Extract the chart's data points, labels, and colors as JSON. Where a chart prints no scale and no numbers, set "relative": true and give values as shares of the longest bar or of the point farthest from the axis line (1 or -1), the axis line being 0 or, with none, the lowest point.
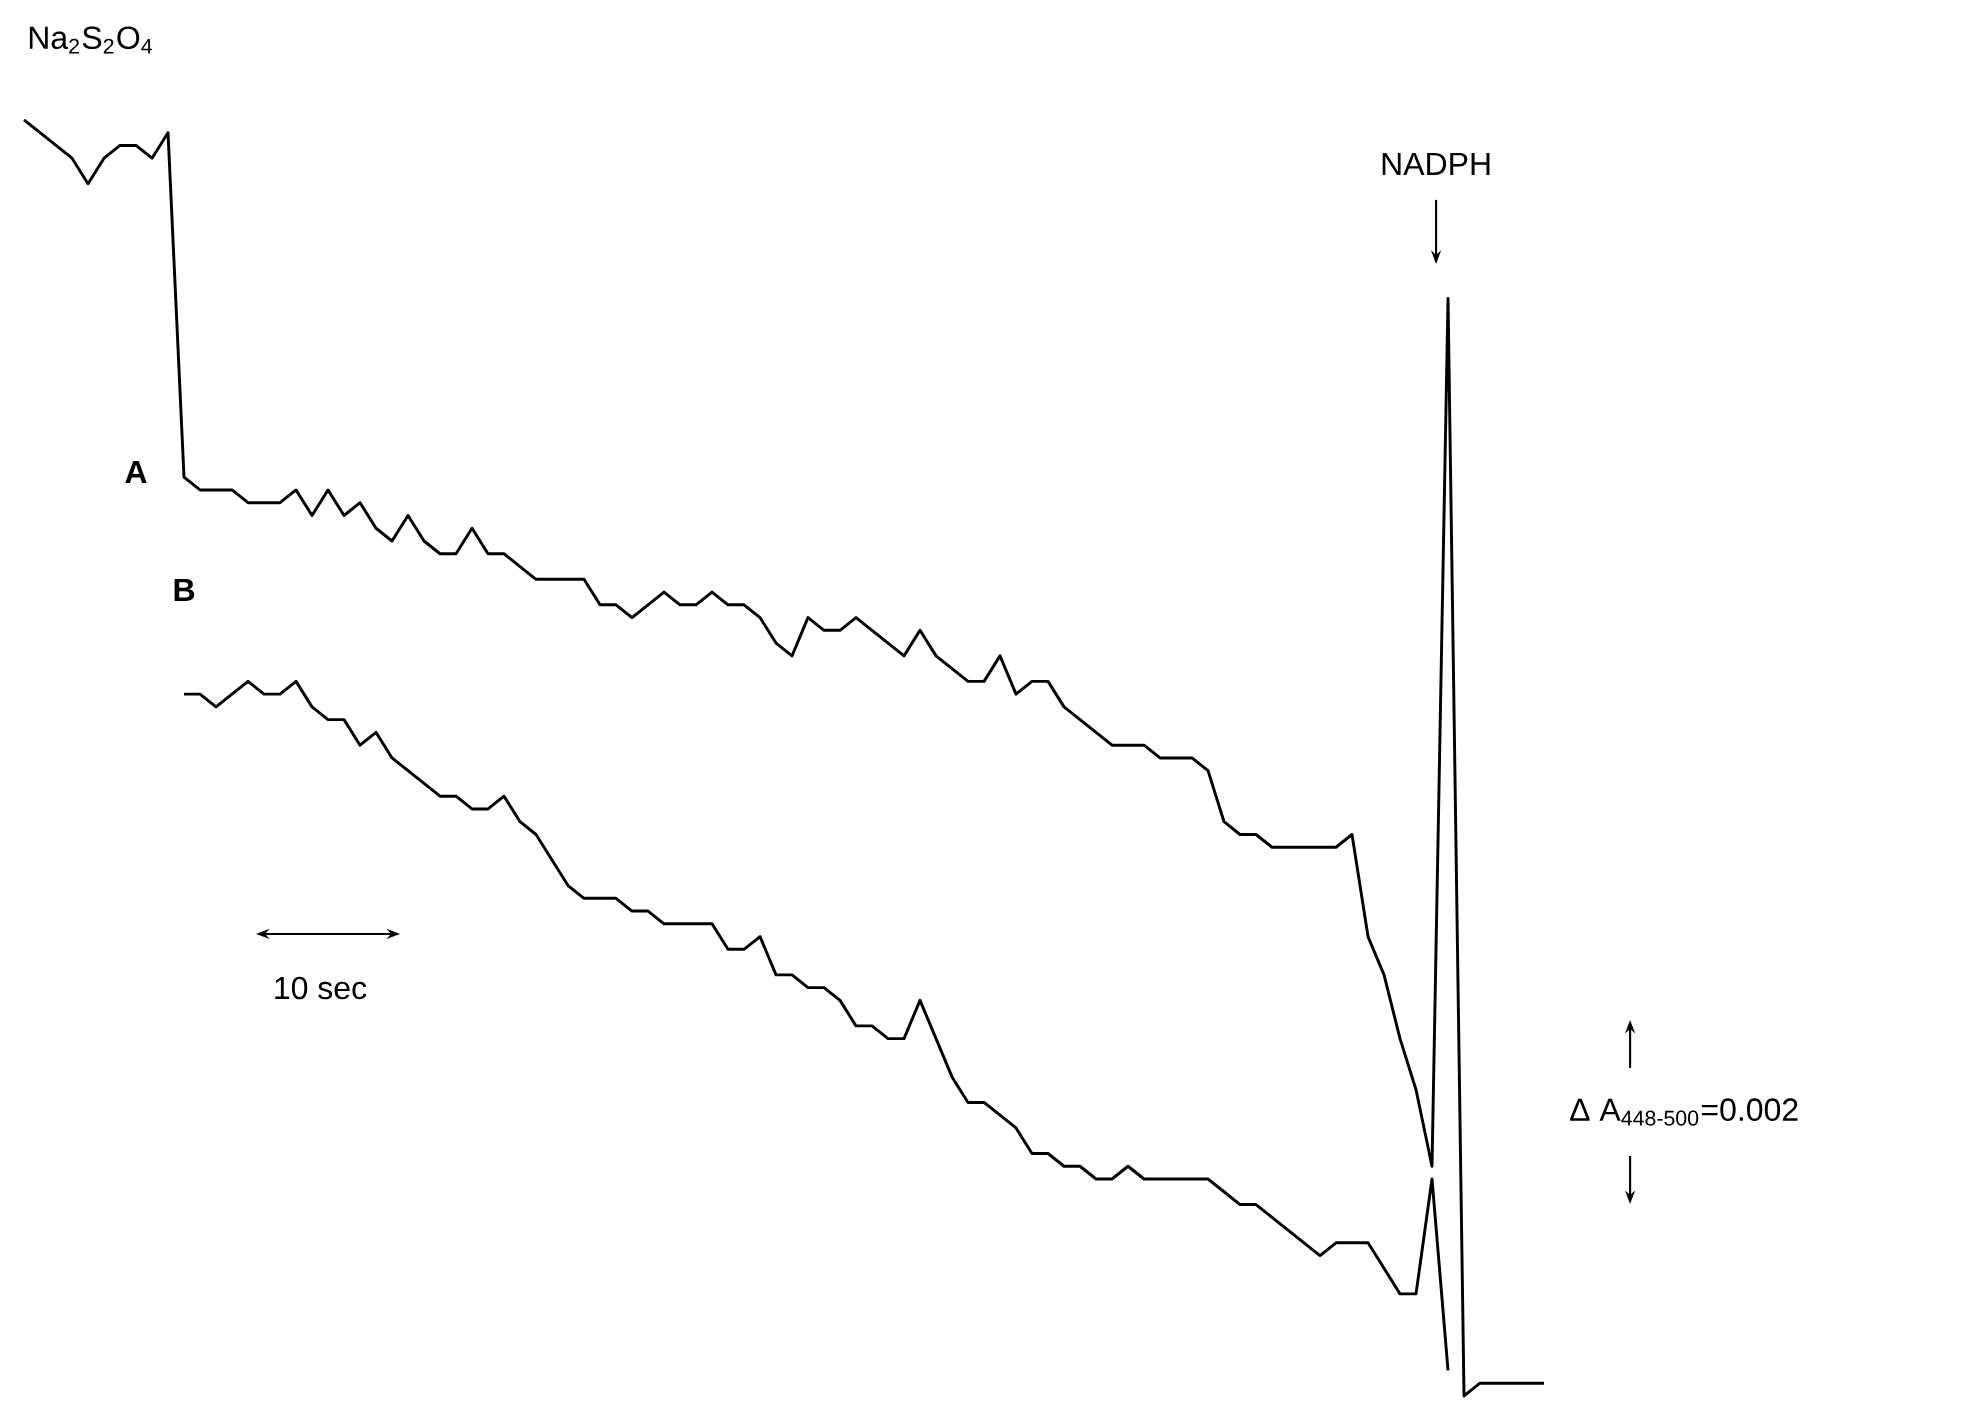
{
  "chart_data": {
    "type": "line",
    "relative": true,
    "categories": [
      null,
      null,
      null,
      null,
      null,
      null,
      null,
      null,
      null,
      null,
      null,
      null,
      null,
      null,
      null,
      null,
      null,
      null,
      null,
      null,
      null,
      null,
      null,
      null,
      null,
      null,
      null,
      null,
      null,
      null,
      null,
      null,
      null,
      null,
      null,
      null,
      null,
      null,
      null,
      null,
      null,
      null,
      null,
      null,
      null,
      null,
      null,
      null,
      null,
      null,
      null,
      null,
      null,
      null,
      null,
      null,
      null,
      null,
      null,
      null,
      null,
      null,
      null,
      null,
      null,
      null,
      null,
      null,
      null,
      null,
      null,
      null,
      null,
      null,
      null,
      null,
      null,
      null,
      null,
      null,
      null,
      null,
      null,
      null,
      null,
      null,
      null,
      null,
      null,
      null,
      null,
      null,
      null,
      null,
      null,
      null
    ],
    "annotations": [
      "Na$_{2}$S$_{2}$O$_{4}$",
      "NADPH",
      "10 sec",
      "Δ A$_{448-500}$=0.002"
    ],
    "series": [
      {
        "name": "A",
        "color": "#000000",
        "values": [
          1.0,
          0.99,
          0.98,
          0.97,
          0.95,
          0.97,
          0.98,
          0.98,
          0.97,
          0.99,
          0.72,
          0.71,
          0.71,
          0.71,
          0.7,
          0.7,
          0.7,
          0.71,
          0.69,
          0.71,
          0.69,
          0.7,
          0.68,
          0.67,
          0.69,
          0.67,
          0.66,
          0.66,
          0.68,
          0.66,
          0.66,
          0.65,
          0.64,
          0.64,
          0.64,
          0.64,
          0.62,
          0.62,
          0.61,
          0.62,
          0.63,
          0.62,
          0.62,
          0.63,
          0.62,
          0.62,
          0.61,
          0.59,
          0.58,
          0.61,
          0.6,
          0.6,
          0.61,
          0.6,
          0.59,
          0.58,
          0.6,
          0.58,
          0.57,
          0.56,
          0.56,
          0.58,
          0.55,
          0.56,
          0.56,
          0.54,
          0.53,
          0.52,
          0.51,
          0.51,
          0.51,
          0.5,
          0.5,
          0.5,
          0.49,
          0.45,
          0.44,
          0.44,
          0.43,
          0.43,
          0.43,
          0.43,
          0.43,
          0.44,
          0.36,
          0.33,
          0.28,
          0.24,
          0.18,
          0.86,
          0,
          0.01,
          0.01,
          0.01,
          0.01,
          0.01
        ]
      },
      {
        "name": "B",
        "color": "#000000",
        "values": [
          null,
          null,
          null,
          null,
          null,
          null,
          null,
          null,
          null,
          null,
          0.55,
          0.55,
          0.54,
          0.55,
          0.56,
          0.55,
          0.55,
          0.56,
          0.54,
          0.53,
          0.53,
          0.51,
          0.52,
          0.5,
          0.49,
          0.48,
          0.47,
          0.47,
          0.46,
          0.46,
          0.47,
          0.45,
          0.44,
          0.42,
          0.4,
          0.39,
          0.39,
          0.39,
          0.38,
          0.38,
          0.37,
          0.37,
          0.37,
          0.37,
          0.35,
          0.35,
          0.36,
          0.33,
          0.33,
          0.32,
          0.32,
          0.31,
          0.29,
          0.29,
          0.28,
          0.28,
          0.31,
          0.28,
          0.25,
          0.23,
          0.23,
          0.22,
          0.21,
          0.19,
          0.19,
          0.18,
          0.18,
          0.17,
          0.17,
          0.18,
          0.17,
          0.17,
          0.17,
          0.17,
          0.17,
          0.16,
          0.15,
          0.15,
          0.14,
          0.13,
          0.12,
          0.11,
          0.12,
          0.12,
          0.12,
          0.1,
          0.08,
          0.08,
          0.17,
          0.02,
          null,
          null,
          null,
          null,
          null,
          null
        ]
      }
    ]
  }
}
